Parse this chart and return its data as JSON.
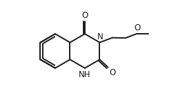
{
  "bg_color": "#ffffff",
  "line_color": "#1a1a1a",
  "line_width": 1.4,
  "font_size": 8.5,
  "figsize": [
    2.84,
    1.48
  ],
  "dpi": 100,
  "xlim": [
    0,
    10.5
  ],
  "ylim": [
    0,
    6.2
  ]
}
